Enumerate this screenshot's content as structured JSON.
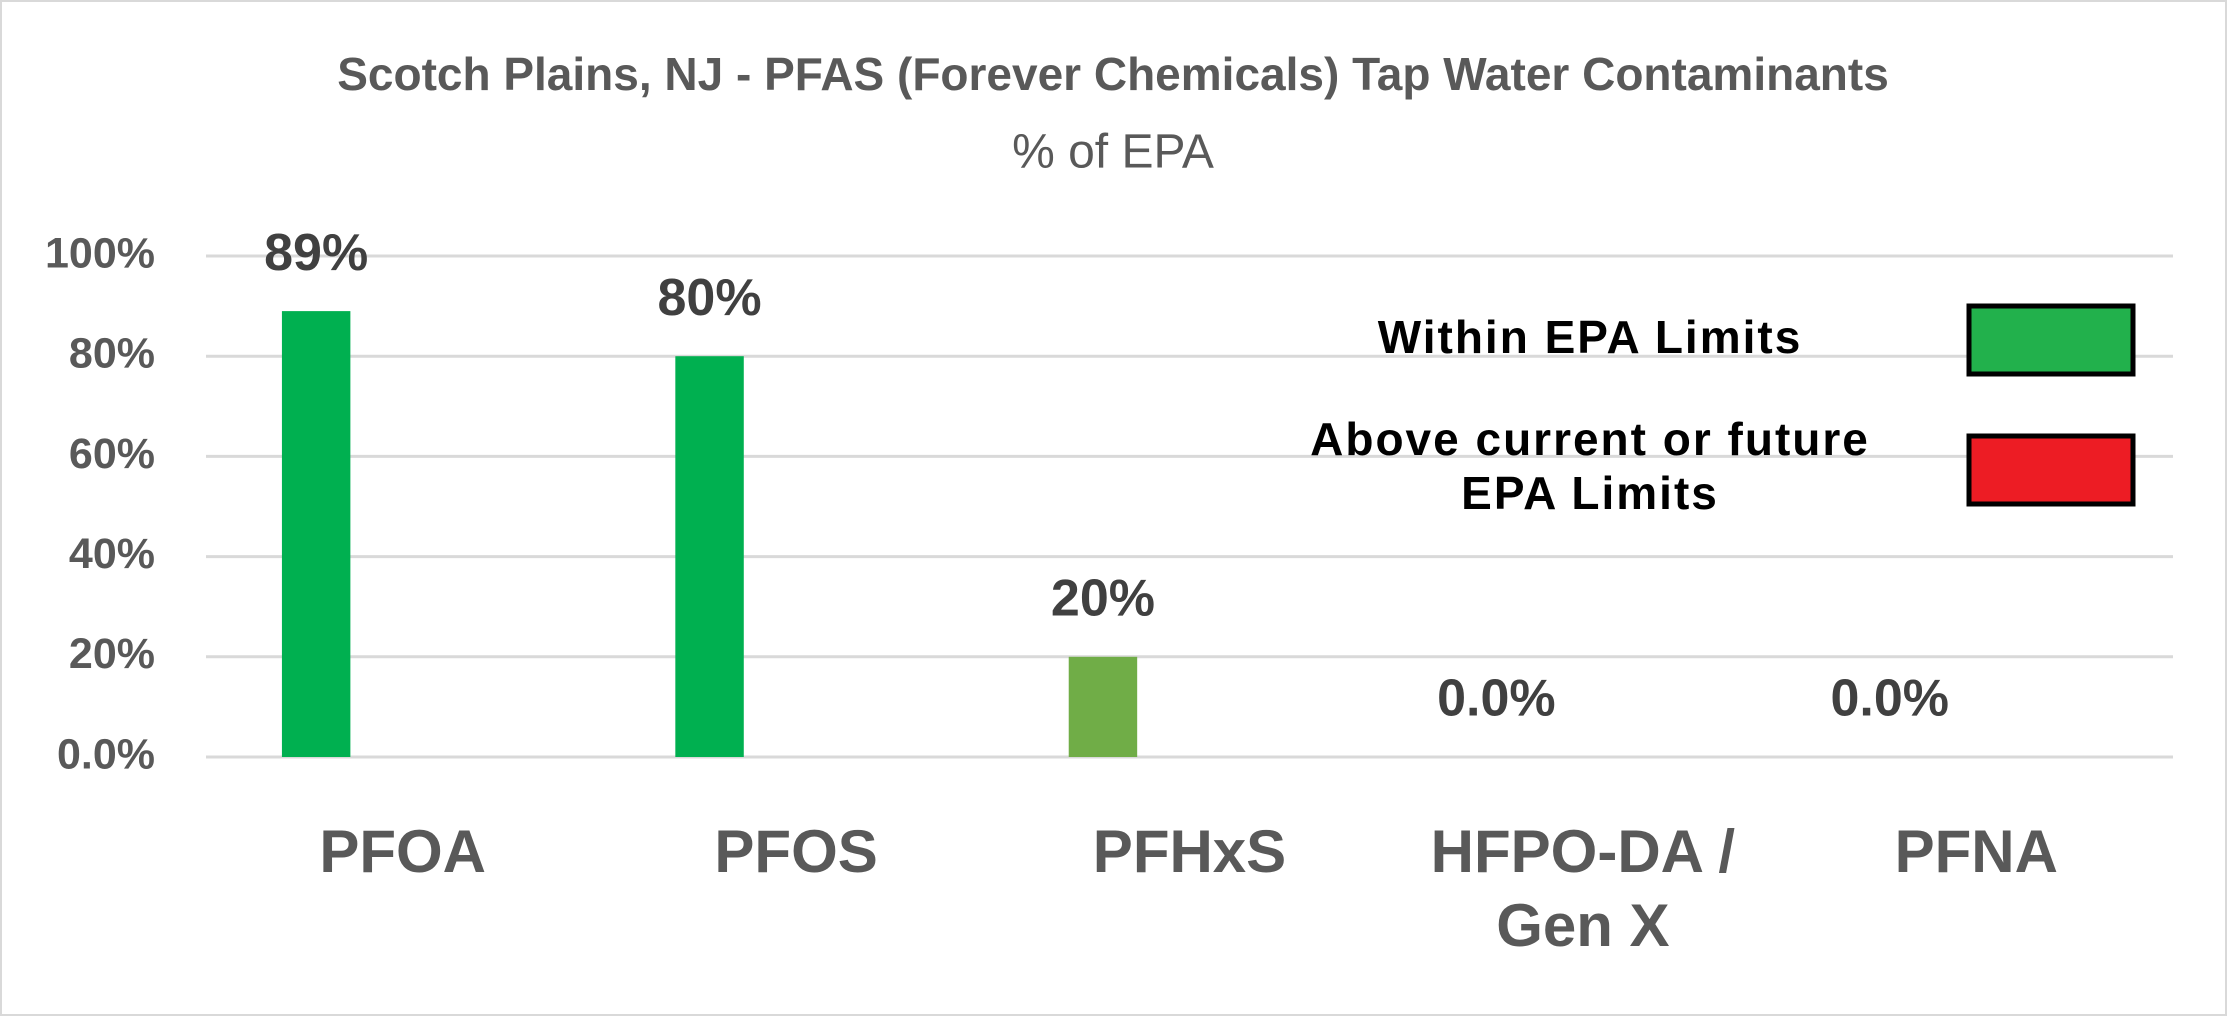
{
  "chart_data": {
    "type": "bar",
    "title": "Scotch Plains, NJ - PFAS (Forever Chemicals) Tap Water Contaminants",
    "subtitle": "% of EPA",
    "categories": [
      "PFOA",
      "PFOS",
      "PFHxS",
      "HFPO-DA / Gen X",
      "PFNA"
    ],
    "values": [
      89,
      80,
      20,
      0,
      0
    ],
    "value_labels": [
      "89%",
      "80%",
      "20%",
      "0.0%",
      "0.0%"
    ],
    "colors": [
      "#00b050",
      "#00b050",
      "#70ad47",
      "#00b050",
      "#00b050"
    ],
    "ylim": [
      0,
      100
    ],
    "yticks": [
      {
        "value": 0,
        "label": "0.0%"
      },
      {
        "value": 20,
        "label": "20%"
      },
      {
        "value": 40,
        "label": "40%"
      },
      {
        "value": 60,
        "label": "60%"
      },
      {
        "value": 80,
        "label": "80%"
      },
      {
        "value": 100,
        "label": "100%"
      }
    ],
    "grid": true,
    "legend": [
      {
        "label": "Within EPA Limits",
        "color": "#22b14c"
      },
      {
        "label": "Above current or future EPA Limits",
        "color": "#ed1c24"
      }
    ]
  }
}
